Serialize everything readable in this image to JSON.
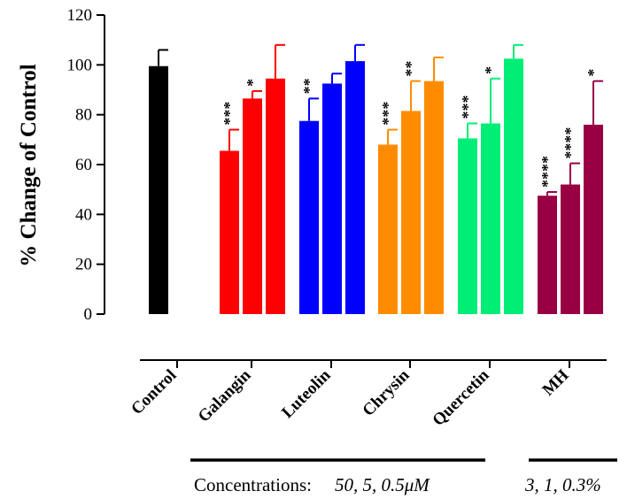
{
  "chart_data": {
    "type": "bar",
    "title": "",
    "ylabel": "% Change of Control",
    "xlabel": "",
    "ylim": [
      0,
      120
    ],
    "yticks": [
      0,
      20,
      40,
      60,
      80,
      100,
      120
    ],
    "categories": [
      "Control",
      "Galangin",
      "Luteolin",
      "Chrysin",
      "Quercetin",
      "MH"
    ],
    "groups": [
      {
        "label": "Control",
        "color": "#000000",
        "bars": [
          {
            "value": 99.5,
            "error": 6.5,
            "sig": ""
          }
        ]
      },
      {
        "label": "Galangin",
        "color": "#ff0000",
        "bars": [
          {
            "value": 65.5,
            "error": 8.5,
            "sig": "***"
          },
          {
            "value": 86.5,
            "error": 3.0,
            "sig": "*"
          },
          {
            "value": 94.5,
            "error": 13.5,
            "sig": ""
          }
        ]
      },
      {
        "label": "Luteolin",
        "color": "#0000ff",
        "bars": [
          {
            "value": 77.5,
            "error": 9.0,
            "sig": "**"
          },
          {
            "value": 92.5,
            "error": 4.0,
            "sig": ""
          },
          {
            "value": 101.5,
            "error": 6.5,
            "sig": ""
          }
        ]
      },
      {
        "label": "Chrysin",
        "color": "#ff8c00",
        "bars": [
          {
            "value": 68.0,
            "error": 6.0,
            "sig": "***"
          },
          {
            "value": 81.5,
            "error": 12.0,
            "sig": "**"
          },
          {
            "value": 93.5,
            "error": 9.5,
            "sig": ""
          }
        ]
      },
      {
        "label": "Quercetin",
        "color": "#00ee76",
        "bars": [
          {
            "value": 70.5,
            "error": 6.0,
            "sig": "***"
          },
          {
            "value": 76.5,
            "error": 18.0,
            "sig": "*"
          },
          {
            "value": 102.5,
            "error": 5.5,
            "sig": ""
          }
        ]
      },
      {
        "label": "MH",
        "color": "#990044",
        "bars": [
          {
            "value": 47.5,
            "error": 1.5,
            "sig": "****"
          },
          {
            "value": 52.0,
            "error": 8.5,
            "sig": "****"
          },
          {
            "value": 76.0,
            "error": 17.5,
            "sig": "*"
          }
        ]
      }
    ],
    "concentration_label": "Concentrations:",
    "flavonoid_concentrations": "50, 5, 0.5μM",
    "mh_concentrations": "3, 1, 0.3%",
    "grid": false
  }
}
